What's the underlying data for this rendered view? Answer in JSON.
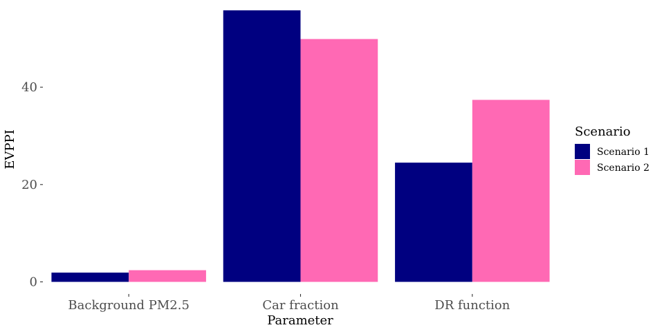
{
  "chart_data": {
    "type": "bar",
    "categories": [
      "Background PM2.5",
      "Car fraction",
      "DR function"
    ],
    "series": [
      {
        "name": "Scenario 1",
        "color": "#000080",
        "values": [
          1.9,
          55.8,
          24.5
        ]
      },
      {
        "name": "Scenario 2",
        "color": "#ff69b4",
        "values": [
          2.4,
          49.9,
          37.4
        ]
      }
    ],
    "xlabel": "Parameter",
    "ylabel": "EVPPI",
    "ylim": [
      -2.2,
      56.5
    ],
    "yticks": [
      0,
      20,
      40
    ],
    "grid": false,
    "legend": {
      "title": "Scenario",
      "placement": "right"
    }
  }
}
